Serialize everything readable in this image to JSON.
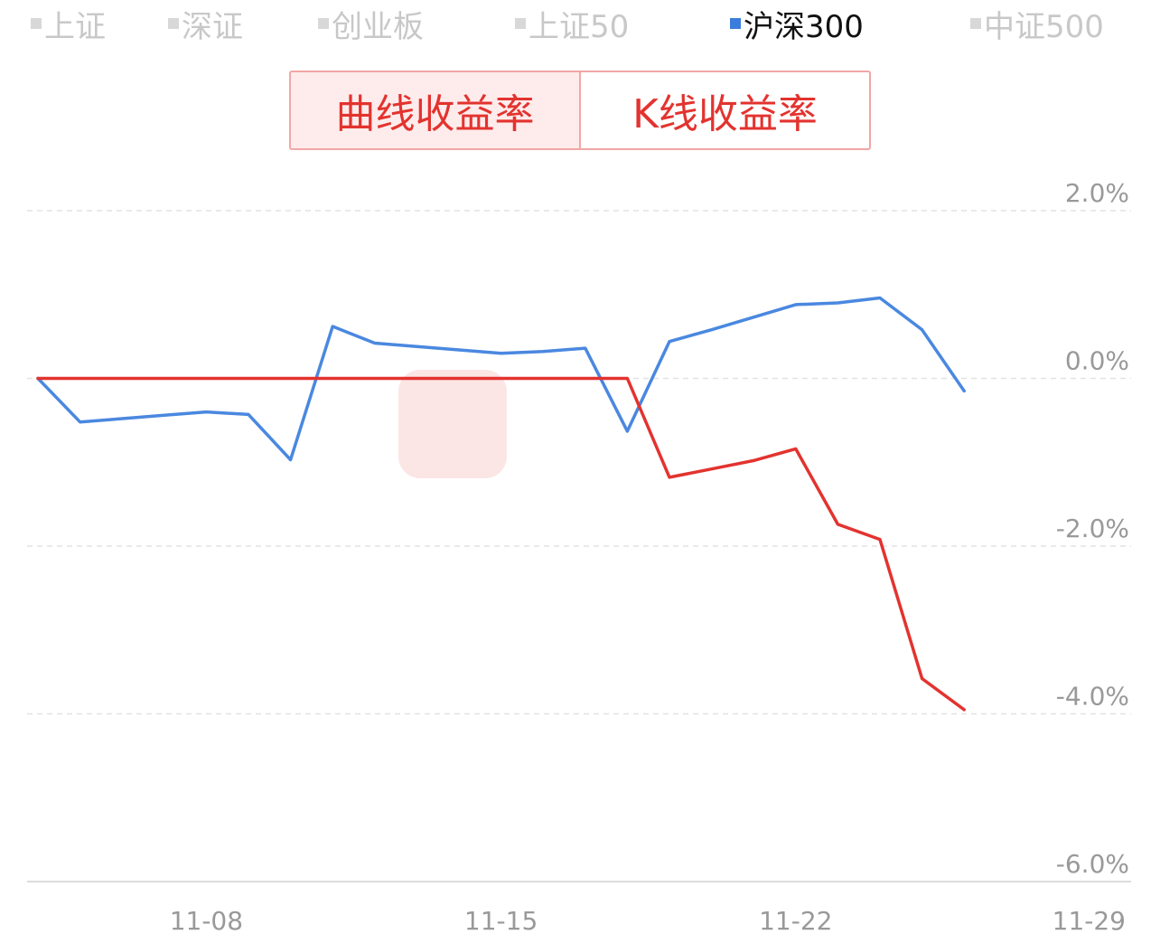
{
  "legend": {
    "items": [
      {
        "label": "上证",
        "active": false
      },
      {
        "label": "深证",
        "active": false
      },
      {
        "label": "创业板",
        "active": false
      },
      {
        "label": "上证50",
        "active": false
      },
      {
        "label": "沪深300",
        "active": true
      },
      {
        "label": "中证500",
        "active": false
      }
    ]
  },
  "toggle": {
    "left_label": "曲线收益率",
    "right_label": "K线收益率"
  },
  "colors": {
    "index_line": "#4a88e0",
    "strategy_line": "#e3332f",
    "accent": "#e3332f"
  },
  "chart_data": {
    "type": "line",
    "x": [
      "11-04",
      "11-05",
      "11-06",
      "11-07",
      "11-08",
      "11-09",
      "11-10",
      "11-11",
      "11-12",
      "11-13",
      "11-14",
      "11-15",
      "11-16",
      "11-17",
      "11-18",
      "11-19",
      "11-20",
      "11-21",
      "11-22",
      "11-23",
      "11-24",
      "11-25",
      "11-26",
      "11-27"
    ],
    "xticks": [
      "11-08",
      "11-15",
      "11-22",
      "11-29"
    ],
    "yticks": [
      "2.0%",
      "0.0%",
      "-2.0%",
      "-4.0%",
      "-6.0%"
    ],
    "ylim": [
      -6.0,
      2.0
    ],
    "grid": true,
    "series": [
      {
        "name": "沪深300",
        "color": "#4a88e0",
        "values": [
          0.0,
          -0.52,
          -0.48,
          -0.44,
          -0.4,
          -0.43,
          -0.97,
          0.62,
          0.42,
          0.38,
          0.34,
          0.3,
          0.32,
          0.36,
          -0.63,
          0.44,
          0.58,
          0.73,
          0.88,
          0.9,
          0.96,
          0.58,
          -0.15,
          null
        ]
      },
      {
        "color": "#e3332f",
        "values": [
          0.0,
          0.0,
          0.0,
          0.0,
          0.0,
          0.0,
          0.0,
          0.0,
          0.0,
          0.0,
          0.0,
          0.0,
          0.0,
          0.0,
          0.0,
          -1.18,
          -1.08,
          -0.98,
          -0.84,
          -1.74,
          -1.92,
          -3.58,
          -3.95,
          null
        ]
      }
    ]
  }
}
